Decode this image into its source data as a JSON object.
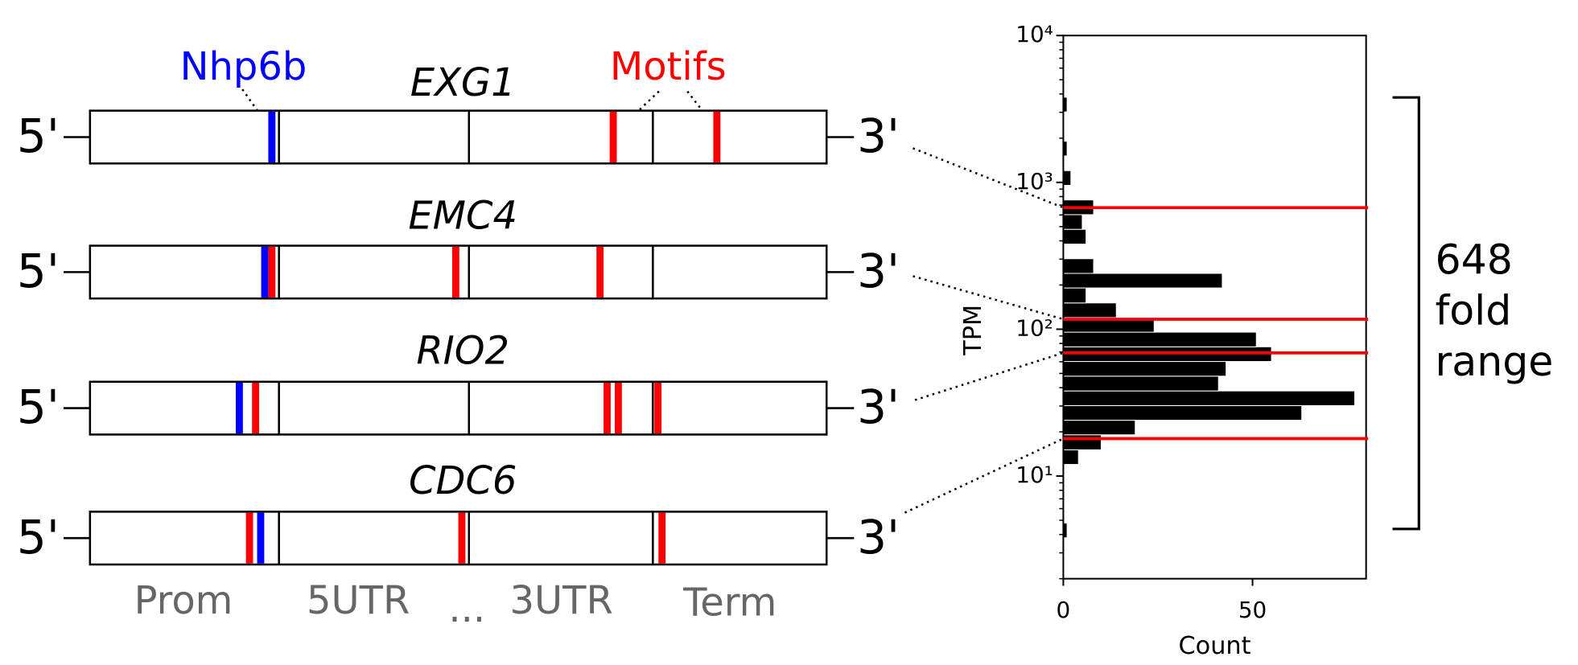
{
  "diagram": {
    "nhp6b_label": "Nhp6b",
    "motifs_label": "Motifs",
    "five_prime": "5'",
    "three_prime": "3'",
    "genes": [
      "EXG1",
      "EMC4",
      "RIO2",
      "CDC6"
    ],
    "regions": [
      "Prom",
      "5UTR",
      "...",
      "3UTR",
      "Term"
    ]
  },
  "chart_data": {
    "type": "histogram",
    "orientation": "horizontal",
    "xlabel": "Count",
    "ylabel": "TPM",
    "bins": [
      3.8,
      4.79,
      6.03,
      7.59,
      9.55,
      12.0,
      15.1,
      19.1,
      24.0,
      30.2,
      38.0,
      47.9,
      60.3,
      75.9,
      95.5,
      120,
      151,
      191,
      240,
      302,
      380,
      479,
      603,
      759,
      955,
      1202,
      1514,
      1905,
      2399,
      3020,
      3802
    ],
    "counts": [
      1,
      0,
      0,
      0,
      0,
      4,
      10,
      19,
      63,
      77,
      41,
      43,
      55,
      51,
      24,
      14,
      6,
      42,
      8,
      0,
      6,
      5,
      8,
      0,
      2,
      0,
      1,
      0,
      0,
      1
    ],
    "color": "#000000",
    "xlim": [
      0,
      80
    ],
    "xticks": [
      0,
      50
    ],
    "ylim": [
      2,
      10000
    ],
    "log_y": true,
    "yticks": [
      {
        "value": 10,
        "label": "10¹"
      },
      {
        "value": 100,
        "label": "10²"
      },
      {
        "value": 1000,
        "label": "10³"
      },
      {
        "value": 10000,
        "label": "10⁴"
      }
    ],
    "reference_lines": {
      "values": [
        673,
        117,
        69,
        18
      ],
      "color": "#ff0000"
    },
    "annotation": [
      "648",
      "fold",
      "range"
    ]
  }
}
